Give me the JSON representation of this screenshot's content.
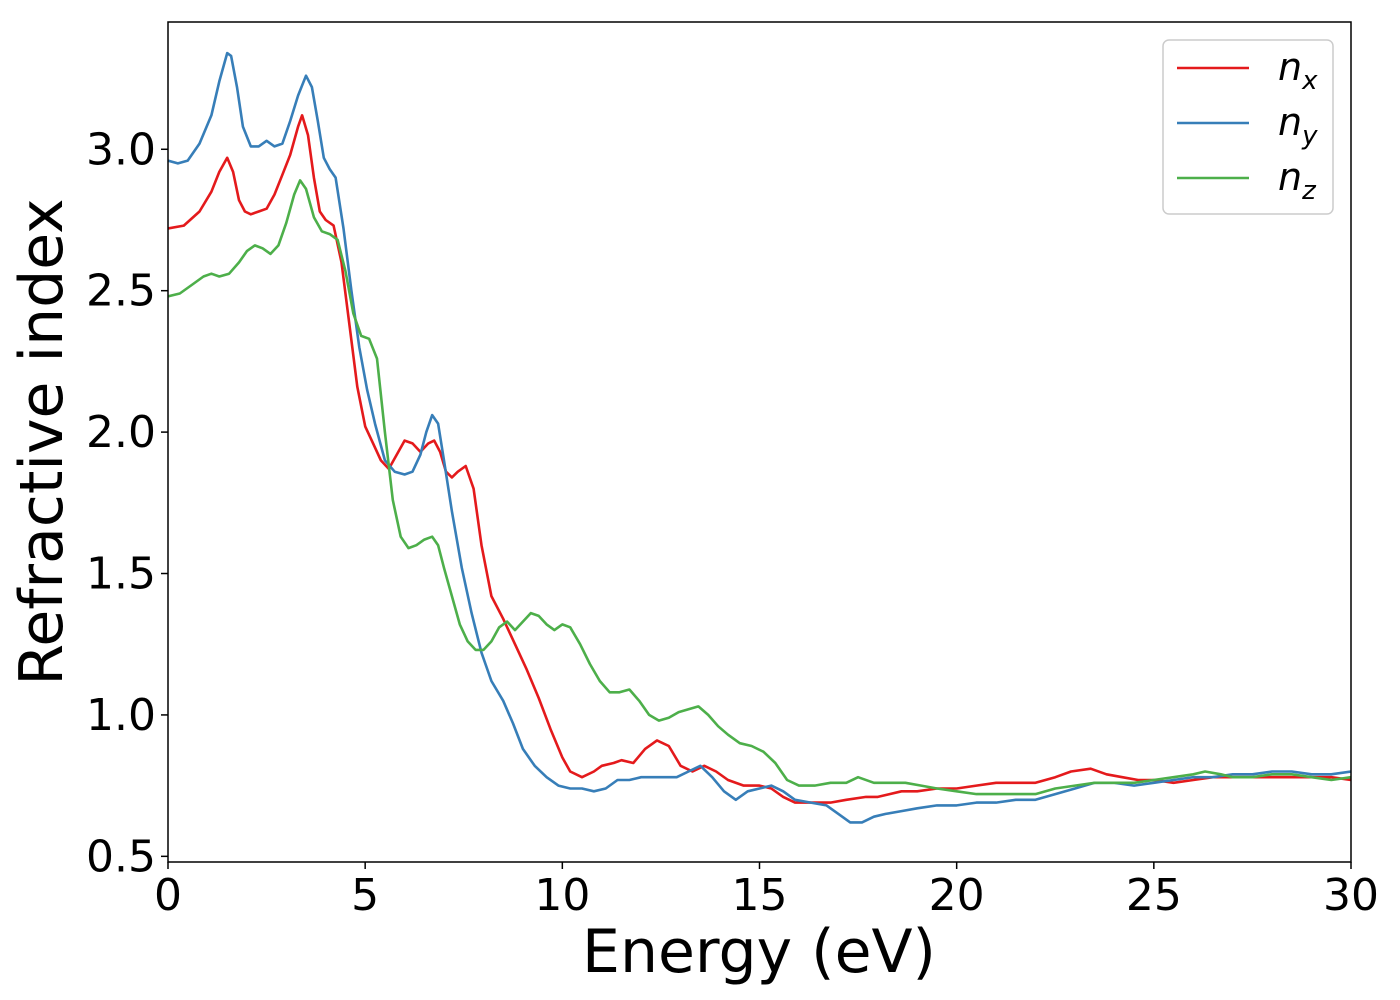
{
  "chart_data": {
    "type": "line",
    "xlabel": "Energy (eV)",
    "ylabel": "Refractive index",
    "xlim": [
      0,
      30
    ],
    "ylim": [
      0.48,
      3.45
    ],
    "xticks": [
      0,
      5,
      10,
      15,
      20,
      25,
      30
    ],
    "xtick_labels": [
      "0",
      "5",
      "10",
      "15",
      "20",
      "25",
      "30"
    ],
    "yticks": [
      0.5,
      1.0,
      1.5,
      2.0,
      2.5,
      3.0
    ],
    "ytick_labels": [
      "0.5",
      "1.0",
      "1.5",
      "2.0",
      "2.5",
      "3.0"
    ],
    "grid": false,
    "legend_position": "top-right",
    "series": [
      {
        "name": "n",
        "subscript": "x",
        "color": "#e41a1c",
        "points": [
          [
            0,
            2.72
          ],
          [
            0.4,
            2.73
          ],
          [
            0.8,
            2.78
          ],
          [
            1.1,
            2.85
          ],
          [
            1.3,
            2.92
          ],
          [
            1.5,
            2.97
          ],
          [
            1.65,
            2.92
          ],
          [
            1.8,
            2.82
          ],
          [
            1.95,
            2.78
          ],
          [
            2.1,
            2.77
          ],
          [
            2.3,
            2.78
          ],
          [
            2.5,
            2.79
          ],
          [
            2.7,
            2.84
          ],
          [
            2.9,
            2.91
          ],
          [
            3.1,
            2.98
          ],
          [
            3.3,
            3.08
          ],
          [
            3.4,
            3.12
          ],
          [
            3.55,
            3.05
          ],
          [
            3.7,
            2.9
          ],
          [
            3.85,
            2.78
          ],
          [
            4.0,
            2.75
          ],
          [
            4.2,
            2.73
          ],
          [
            4.4,
            2.6
          ],
          [
            4.6,
            2.38
          ],
          [
            4.8,
            2.16
          ],
          [
            5.0,
            2.02
          ],
          [
            5.2,
            1.96
          ],
          [
            5.4,
            1.9
          ],
          [
            5.6,
            1.87
          ],
          [
            5.8,
            1.92
          ],
          [
            6.0,
            1.97
          ],
          [
            6.2,
            1.96
          ],
          [
            6.4,
            1.93
          ],
          [
            6.6,
            1.96
          ],
          [
            6.75,
            1.97
          ],
          [
            6.9,
            1.93
          ],
          [
            7.05,
            1.86
          ],
          [
            7.2,
            1.84
          ],
          [
            7.35,
            1.86
          ],
          [
            7.55,
            1.88
          ],
          [
            7.75,
            1.8
          ],
          [
            7.95,
            1.6
          ],
          [
            8.2,
            1.42
          ],
          [
            8.5,
            1.34
          ],
          [
            8.8,
            1.25
          ],
          [
            9.1,
            1.16
          ],
          [
            9.4,
            1.06
          ],
          [
            9.7,
            0.95
          ],
          [
            10.0,
            0.85
          ],
          [
            10.2,
            0.8
          ],
          [
            10.5,
            0.78
          ],
          [
            10.8,
            0.8
          ],
          [
            11.0,
            0.82
          ],
          [
            11.3,
            0.83
          ],
          [
            11.5,
            0.84
          ],
          [
            11.8,
            0.83
          ],
          [
            12.1,
            0.88
          ],
          [
            12.4,
            0.91
          ],
          [
            12.7,
            0.89
          ],
          [
            13.0,
            0.82
          ],
          [
            13.3,
            0.8
          ],
          [
            13.6,
            0.82
          ],
          [
            13.9,
            0.8
          ],
          [
            14.2,
            0.77
          ],
          [
            14.6,
            0.75
          ],
          [
            15.0,
            0.75
          ],
          [
            15.3,
            0.74
          ],
          [
            15.6,
            0.71
          ],
          [
            15.9,
            0.69
          ],
          [
            16.3,
            0.69
          ],
          [
            16.8,
            0.69
          ],
          [
            17.2,
            0.7
          ],
          [
            17.7,
            0.71
          ],
          [
            18.0,
            0.71
          ],
          [
            18.3,
            0.72
          ],
          [
            18.6,
            0.73
          ],
          [
            19.0,
            0.73
          ],
          [
            19.5,
            0.74
          ],
          [
            20.0,
            0.74
          ],
          [
            20.5,
            0.75
          ],
          [
            21.0,
            0.76
          ],
          [
            21.5,
            0.76
          ],
          [
            22.0,
            0.76
          ],
          [
            22.5,
            0.78
          ],
          [
            22.9,
            0.8
          ],
          [
            23.4,
            0.81
          ],
          [
            23.8,
            0.79
          ],
          [
            24.2,
            0.78
          ],
          [
            24.6,
            0.77
          ],
          [
            25.0,
            0.77
          ],
          [
            25.5,
            0.76
          ],
          [
            26.0,
            0.77
          ],
          [
            26.5,
            0.78
          ],
          [
            27.0,
            0.78
          ],
          [
            27.5,
            0.78
          ],
          [
            28.0,
            0.78
          ],
          [
            28.5,
            0.78
          ],
          [
            29.0,
            0.78
          ],
          [
            29.5,
            0.78
          ],
          [
            30.0,
            0.77
          ]
        ]
      },
      {
        "name": "n",
        "subscript": "y",
        "color": "#377eb8",
        "points": [
          [
            0,
            2.96
          ],
          [
            0.25,
            2.95
          ],
          [
            0.5,
            2.96
          ],
          [
            0.8,
            3.02
          ],
          [
            1.1,
            3.12
          ],
          [
            1.3,
            3.24
          ],
          [
            1.5,
            3.34
          ],
          [
            1.6,
            3.33
          ],
          [
            1.75,
            3.22
          ],
          [
            1.9,
            3.08
          ],
          [
            2.1,
            3.01
          ],
          [
            2.3,
            3.01
          ],
          [
            2.5,
            3.03
          ],
          [
            2.7,
            3.01
          ],
          [
            2.9,
            3.02
          ],
          [
            3.1,
            3.1
          ],
          [
            3.3,
            3.19
          ],
          [
            3.5,
            3.26
          ],
          [
            3.65,
            3.22
          ],
          [
            3.8,
            3.1
          ],
          [
            3.95,
            2.97
          ],
          [
            4.1,
            2.93
          ],
          [
            4.25,
            2.9
          ],
          [
            4.45,
            2.72
          ],
          [
            4.65,
            2.5
          ],
          [
            4.85,
            2.3
          ],
          [
            5.05,
            2.15
          ],
          [
            5.25,
            2.03
          ],
          [
            5.5,
            1.9
          ],
          [
            5.75,
            1.86
          ],
          [
            6.0,
            1.85
          ],
          [
            6.2,
            1.86
          ],
          [
            6.4,
            1.92
          ],
          [
            6.55,
            2.0
          ],
          [
            6.7,
            2.06
          ],
          [
            6.85,
            2.03
          ],
          [
            7.0,
            1.9
          ],
          [
            7.2,
            1.72
          ],
          [
            7.45,
            1.52
          ],
          [
            7.7,
            1.36
          ],
          [
            7.95,
            1.22
          ],
          [
            8.2,
            1.12
          ],
          [
            8.5,
            1.05
          ],
          [
            8.75,
            0.97
          ],
          [
            9.0,
            0.88
          ],
          [
            9.3,
            0.82
          ],
          [
            9.6,
            0.78
          ],
          [
            9.9,
            0.75
          ],
          [
            10.2,
            0.74
          ],
          [
            10.5,
            0.74
          ],
          [
            10.8,
            0.73
          ],
          [
            11.1,
            0.74
          ],
          [
            11.4,
            0.77
          ],
          [
            11.7,
            0.77
          ],
          [
            12.0,
            0.78
          ],
          [
            12.3,
            0.78
          ],
          [
            12.6,
            0.78
          ],
          [
            12.9,
            0.78
          ],
          [
            13.2,
            0.8
          ],
          [
            13.5,
            0.82
          ],
          [
            13.8,
            0.78
          ],
          [
            14.1,
            0.73
          ],
          [
            14.4,
            0.7
          ],
          [
            14.7,
            0.73
          ],
          [
            15.0,
            0.74
          ],
          [
            15.3,
            0.75
          ],
          [
            15.6,
            0.73
          ],
          [
            15.9,
            0.7
          ],
          [
            16.3,
            0.69
          ],
          [
            16.7,
            0.68
          ],
          [
            17.0,
            0.65
          ],
          [
            17.3,
            0.62
          ],
          [
            17.6,
            0.62
          ],
          [
            17.9,
            0.64
          ],
          [
            18.2,
            0.65
          ],
          [
            18.6,
            0.66
          ],
          [
            19.0,
            0.67
          ],
          [
            19.5,
            0.68
          ],
          [
            20.0,
            0.68
          ],
          [
            20.5,
            0.69
          ],
          [
            21.0,
            0.69
          ],
          [
            21.5,
            0.7
          ],
          [
            22.0,
            0.7
          ],
          [
            22.5,
            0.72
          ],
          [
            23.0,
            0.74
          ],
          [
            23.5,
            0.76
          ],
          [
            24.0,
            0.76
          ],
          [
            24.5,
            0.75
          ],
          [
            25.0,
            0.76
          ],
          [
            25.5,
            0.77
          ],
          [
            26.0,
            0.78
          ],
          [
            26.5,
            0.78
          ],
          [
            27.0,
            0.79
          ],
          [
            27.5,
            0.79
          ],
          [
            28.0,
            0.8
          ],
          [
            28.5,
            0.8
          ],
          [
            29.0,
            0.79
          ],
          [
            29.5,
            0.79
          ],
          [
            30.0,
            0.8
          ]
        ]
      },
      {
        "name": "n",
        "subscript": "z",
        "color": "#4daf4a",
        "points": [
          [
            0,
            2.48
          ],
          [
            0.3,
            2.49
          ],
          [
            0.6,
            2.52
          ],
          [
            0.9,
            2.55
          ],
          [
            1.1,
            2.56
          ],
          [
            1.3,
            2.55
          ],
          [
            1.55,
            2.56
          ],
          [
            1.8,
            2.6
          ],
          [
            2.0,
            2.64
          ],
          [
            2.2,
            2.66
          ],
          [
            2.4,
            2.65
          ],
          [
            2.6,
            2.63
          ],
          [
            2.8,
            2.66
          ],
          [
            3.0,
            2.74
          ],
          [
            3.2,
            2.84
          ],
          [
            3.35,
            2.89
          ],
          [
            3.5,
            2.86
          ],
          [
            3.7,
            2.76
          ],
          [
            3.9,
            2.71
          ],
          [
            4.1,
            2.7
          ],
          [
            4.3,
            2.68
          ],
          [
            4.5,
            2.57
          ],
          [
            4.7,
            2.42
          ],
          [
            4.9,
            2.34
          ],
          [
            5.1,
            2.33
          ],
          [
            5.3,
            2.26
          ],
          [
            5.5,
            2.0
          ],
          [
            5.7,
            1.76
          ],
          [
            5.9,
            1.63
          ],
          [
            6.1,
            1.59
          ],
          [
            6.3,
            1.6
          ],
          [
            6.5,
            1.62
          ],
          [
            6.7,
            1.63
          ],
          [
            6.85,
            1.6
          ],
          [
            7.0,
            1.52
          ],
          [
            7.2,
            1.42
          ],
          [
            7.4,
            1.32
          ],
          [
            7.6,
            1.26
          ],
          [
            7.8,
            1.23
          ],
          [
            8.0,
            1.23
          ],
          [
            8.2,
            1.26
          ],
          [
            8.4,
            1.31
          ],
          [
            8.6,
            1.33
          ],
          [
            8.8,
            1.3
          ],
          [
            9.0,
            1.33
          ],
          [
            9.2,
            1.36
          ],
          [
            9.4,
            1.35
          ],
          [
            9.6,
            1.32
          ],
          [
            9.8,
            1.3
          ],
          [
            10.0,
            1.32
          ],
          [
            10.2,
            1.31
          ],
          [
            10.45,
            1.25
          ],
          [
            10.7,
            1.18
          ],
          [
            10.95,
            1.12
          ],
          [
            11.2,
            1.08
          ],
          [
            11.45,
            1.08
          ],
          [
            11.7,
            1.09
          ],
          [
            11.95,
            1.05
          ],
          [
            12.2,
            1.0
          ],
          [
            12.45,
            0.98
          ],
          [
            12.7,
            0.99
          ],
          [
            12.95,
            1.01
          ],
          [
            13.2,
            1.02
          ],
          [
            13.45,
            1.03
          ],
          [
            13.7,
            1.0
          ],
          [
            13.95,
            0.96
          ],
          [
            14.2,
            0.93
          ],
          [
            14.5,
            0.9
          ],
          [
            14.8,
            0.89
          ],
          [
            15.1,
            0.87
          ],
          [
            15.4,
            0.83
          ],
          [
            15.7,
            0.77
          ],
          [
            16.0,
            0.75
          ],
          [
            16.4,
            0.75
          ],
          [
            16.8,
            0.76
          ],
          [
            17.2,
            0.76
          ],
          [
            17.5,
            0.78
          ],
          [
            17.9,
            0.76
          ],
          [
            18.3,
            0.76
          ],
          [
            18.7,
            0.76
          ],
          [
            19.1,
            0.75
          ],
          [
            19.5,
            0.74
          ],
          [
            20.0,
            0.73
          ],
          [
            20.5,
            0.72
          ],
          [
            21.0,
            0.72
          ],
          [
            21.5,
            0.72
          ],
          [
            22.0,
            0.72
          ],
          [
            22.5,
            0.74
          ],
          [
            23.0,
            0.75
          ],
          [
            23.5,
            0.76
          ],
          [
            24.0,
            0.76
          ],
          [
            24.5,
            0.76
          ],
          [
            25.0,
            0.77
          ],
          [
            25.5,
            0.78
          ],
          [
            26.0,
            0.79
          ],
          [
            26.3,
            0.8
          ],
          [
            26.7,
            0.79
          ],
          [
            27.0,
            0.78
          ],
          [
            27.5,
            0.78
          ],
          [
            28.0,
            0.79
          ],
          [
            28.5,
            0.79
          ],
          [
            29.0,
            0.78
          ],
          [
            29.5,
            0.77
          ],
          [
            30.0,
            0.78
          ]
        ]
      }
    ]
  }
}
